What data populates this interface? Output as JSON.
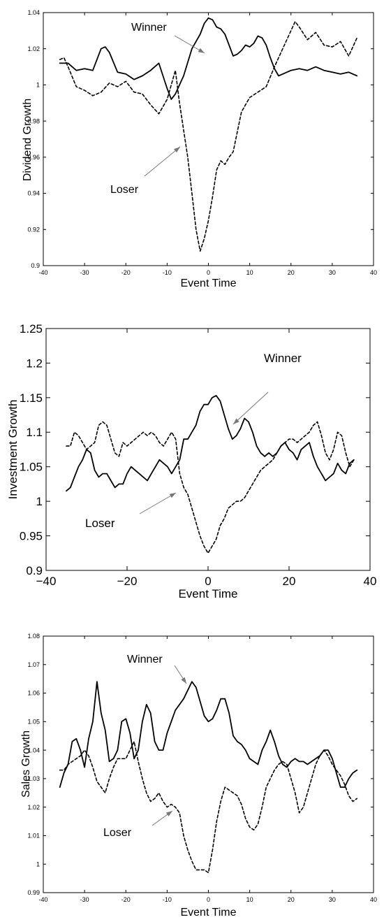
{
  "chart_data": [
    {
      "type": "line",
      "xlabel": "Event Time",
      "ylabel": "Dividend Growth",
      "xlim": [
        -40,
        40
      ],
      "ylim": [
        0.9,
        1.04
      ],
      "xticks": [
        "-40",
        "-30",
        "-20",
        "-10",
        "0",
        "10",
        "20",
        "30",
        "40"
      ],
      "yticks": [
        "0.9",
        "0.92",
        "0.94",
        "0.96",
        "0.98",
        "1",
        "1.02",
        "1.04"
      ],
      "annotations": [
        {
          "text": "Winner"
        },
        {
          "text": "Loser"
        }
      ],
      "series": [
        {
          "name": "Winner",
          "style": "solid",
          "x": [
            -36,
            -34,
            -32,
            -30,
            -28,
            -26,
            -25,
            -24,
            -22,
            -20,
            -18,
            -16,
            -14,
            -12,
            -10,
            -9,
            -8,
            -6,
            -4,
            -2,
            -1,
            0,
            1,
            2,
            3,
            4,
            5,
            6,
            7,
            8,
            9,
            10,
            11,
            12,
            13,
            14,
            15,
            16,
            17,
            18,
            20,
            22,
            24,
            26,
            28,
            30,
            32,
            34,
            36
          ],
          "y": [
            1.012,
            1.012,
            1.008,
            1.009,
            1.008,
            1.02,
            1.021,
            1.018,
            1.007,
            1.006,
            1.003,
            1.005,
            1.008,
            1.012,
            0.998,
            0.992,
            0.995,
            1.005,
            1.02,
            1.028,
            1.034,
            1.037,
            1.036,
            1.032,
            1.031,
            1.028,
            1.022,
            1.016,
            1.017,
            1.019,
            1.022,
            1.021,
            1.023,
            1.027,
            1.026,
            1.022,
            1.015,
            1.009,
            1.005,
            1.006,
            1.008,
            1.009,
            1.008,
            1.01,
            1.008,
            1.007,
            1.006,
            1.007,
            1.005
          ]
        },
        {
          "name": "Loser",
          "style": "dashed",
          "x": [
            -36,
            -35,
            -34,
            -32,
            -30,
            -28,
            -26,
            -24,
            -22,
            -20,
            -18,
            -16,
            -14,
            -12,
            -10,
            -8,
            -7,
            -6,
            -5,
            -4,
            -3,
            -2,
            -1,
            0,
            1,
            2,
            3,
            4,
            5,
            6,
            8,
            10,
            12,
            14,
            16,
            18,
            20,
            21,
            22,
            24,
            26,
            28,
            30,
            32,
            34,
            36
          ],
          "y": [
            1.014,
            1.015,
            1.01,
            0.999,
            0.997,
            0.994,
            0.996,
            1.001,
            0.999,
            1.002,
            0.996,
            0.995,
            0.989,
            0.984,
            0.992,
            1.008,
            0.99,
            0.975,
            0.96,
            0.94,
            0.92,
            0.908,
            0.915,
            0.925,
            0.938,
            0.953,
            0.958,
            0.956,
            0.96,
            0.963,
            0.985,
            0.993,
            0.996,
            0.999,
            1.01,
            1.02,
            1.03,
            1.035,
            1.032,
            1.025,
            1.029,
            1.022,
            1.021,
            1.024,
            1.016,
            1.026
          ]
        }
      ]
    },
    {
      "type": "line",
      "xlabel": "Event Time",
      "ylabel": "Investment Growth",
      "xlim": [
        -40,
        40
      ],
      "ylim": [
        0.9,
        1.25
      ],
      "xticks": [
        "−40",
        "−20",
        "0",
        "20",
        "40"
      ],
      "yticks": [
        "0.9",
        "0.95",
        "1",
        "1.05",
        "1.1",
        "1.15",
        "1.2",
        "1.25"
      ],
      "annotations": [
        {
          "text": "Winner"
        },
        {
          "text": "Loser"
        }
      ],
      "series": [
        {
          "name": "Winner",
          "style": "solid",
          "x": [
            -35,
            -34,
            -33,
            -32,
            -31,
            -30,
            -29,
            -28,
            -27,
            -26,
            -25,
            -24,
            -23,
            -22,
            -21,
            -20,
            -19,
            -18,
            -17,
            -16,
            -15,
            -14,
            -13,
            -12,
            -11,
            -10,
            -9,
            -8,
            -7,
            -6,
            -5,
            -4,
            -3,
            -2,
            -1,
            0,
            1,
            2,
            3,
            4,
            5,
            6,
            7,
            8,
            9,
            10,
            11,
            12,
            13,
            14,
            15,
            16,
            17,
            18,
            19,
            20,
            21,
            22,
            23,
            24,
            25,
            26,
            27,
            28,
            29,
            30,
            31,
            32,
            33,
            34,
            35,
            36
          ],
          "y": [
            1.015,
            1.02,
            1.035,
            1.05,
            1.06,
            1.075,
            1.07,
            1.045,
            1.035,
            1.04,
            1.04,
            1.03,
            1.02,
            1.025,
            1.025,
            1.04,
            1.05,
            1.045,
            1.04,
            1.035,
            1.03,
            1.04,
            1.05,
            1.06,
            1.055,
            1.05,
            1.04,
            1.05,
            1.06,
            1.09,
            1.09,
            1.1,
            1.11,
            1.13,
            1.14,
            1.14,
            1.15,
            1.153,
            1.145,
            1.125,
            1.105,
            1.09,
            1.095,
            1.105,
            1.12,
            1.115,
            1.1,
            1.08,
            1.07,
            1.065,
            1.07,
            1.065,
            1.07,
            1.08,
            1.085,
            1.075,
            1.07,
            1.06,
            1.075,
            1.08,
            1.085,
            1.065,
            1.05,
            1.04,
            1.03,
            1.035,
            1.04,
            1.055,
            1.045,
            1.04,
            1.055,
            1.06
          ]
        },
        {
          "name": "Loser",
          "style": "dashed",
          "x": [
            -35,
            -34,
            -33,
            -32,
            -31,
            -30,
            -29,
            -28,
            -27,
            -26,
            -25,
            -24,
            -23,
            -22,
            -21,
            -20,
            -19,
            -18,
            -17,
            -16,
            -15,
            -14,
            -13,
            -12,
            -11,
            -10,
            -9,
            -8,
            -7,
            -6,
            -5,
            -4,
            -3,
            -2,
            -1,
            0,
            1,
            2,
            3,
            4,
            5,
            6,
            7,
            8,
            9,
            10,
            11,
            12,
            13,
            14,
            15,
            16,
            17,
            18,
            19,
            20,
            21,
            22,
            23,
            24,
            25,
            26,
            27,
            28,
            29,
            30,
            31,
            32,
            33,
            34,
            35,
            36
          ],
          "y": [
            1.08,
            1.08,
            1.1,
            1.095,
            1.085,
            1.075,
            1.08,
            1.085,
            1.11,
            1.115,
            1.11,
            1.09,
            1.07,
            1.065,
            1.085,
            1.08,
            1.085,
            1.09,
            1.095,
            1.1,
            1.095,
            1.1,
            1.095,
            1.085,
            1.08,
            1.09,
            1.1,
            1.09,
            1.04,
            1.02,
            1.01,
            0.99,
            0.97,
            0.95,
            0.935,
            0.925,
            0.935,
            0.945,
            0.965,
            0.975,
            0.99,
            0.995,
            1.0,
            1.0,
            1.005,
            1.015,
            1.025,
            1.035,
            1.045,
            1.05,
            1.055,
            1.06,
            1.07,
            1.08,
            1.085,
            1.09,
            1.09,
            1.085,
            1.09,
            1.095,
            1.1,
            1.11,
            1.115,
            1.095,
            1.07,
            1.06,
            1.075,
            1.1,
            1.095,
            1.07,
            1.05,
            1.06
          ]
        }
      ]
    },
    {
      "type": "line",
      "xlabel": "Event Time",
      "ylabel": "Sales Growth",
      "xlim": [
        -40,
        40
      ],
      "ylim": [
        0.99,
        1.08
      ],
      "xticks": [
        "-40",
        "-30",
        "-20",
        "-10",
        "0",
        "10",
        "20",
        "30",
        "40"
      ],
      "yticks": [
        "0.99",
        "1",
        "1.01",
        "1.02",
        "1.03",
        "1.04",
        "1.05",
        "1.06",
        "1.07",
        "1.08"
      ],
      "annotations": [
        {
          "text": "Winner"
        },
        {
          "text": "Loser"
        }
      ],
      "series": [
        {
          "name": "Winner",
          "style": "solid",
          "x": [
            -36,
            -35,
            -34,
            -33,
            -32,
            -31,
            -30,
            -29,
            -28,
            -27,
            -26,
            -25,
            -24,
            -23,
            -22,
            -21,
            -20,
            -19,
            -18,
            -17,
            -16,
            -15,
            -14,
            -13,
            -12,
            -11,
            -10,
            -9,
            -8,
            -7,
            -6,
            -5,
            -4,
            -3,
            -2,
            -1,
            0,
            1,
            2,
            3,
            4,
            5,
            6,
            7,
            8,
            9,
            10,
            11,
            12,
            13,
            14,
            15,
            16,
            17,
            18,
            19,
            20,
            21,
            22,
            23,
            24,
            25,
            26,
            27,
            28,
            29,
            30,
            31,
            32,
            33,
            34,
            35,
            36
          ],
          "y": [
            1.027,
            1.032,
            1.035,
            1.043,
            1.044,
            1.04,
            1.034,
            1.044,
            1.05,
            1.064,
            1.053,
            1.047,
            1.036,
            1.037,
            1.04,
            1.05,
            1.051,
            1.046,
            1.037,
            1.04,
            1.05,
            1.056,
            1.053,
            1.043,
            1.04,
            1.04,
            1.046,
            1.05,
            1.054,
            1.056,
            1.058,
            1.061,
            1.064,
            1.062,
            1.057,
            1.052,
            1.05,
            1.051,
            1.054,
            1.058,
            1.058,
            1.053,
            1.045,
            1.043,
            1.042,
            1.04,
            1.037,
            1.036,
            1.035,
            1.04,
            1.043,
            1.047,
            1.043,
            1.038,
            1.035,
            1.034,
            1.036,
            1.037,
            1.036,
            1.036,
            1.035,
            1.036,
            1.037,
            1.038,
            1.04,
            1.04,
            1.037,
            1.032,
            1.027,
            1.027,
            1.03,
            1.032,
            1.033
          ]
        },
        {
          "name": "Loser",
          "style": "dashed",
          "x": [
            -36,
            -35,
            -34,
            -33,
            -32,
            -31,
            -30,
            -29,
            -28,
            -27,
            -26,
            -25,
            -24,
            -23,
            -22,
            -21,
            -20,
            -19,
            -18,
            -17,
            -16,
            -15,
            -14,
            -13,
            -12,
            -11,
            -10,
            -9,
            -8,
            -7,
            -6,
            -5,
            -4,
            -3,
            -2,
            -1,
            0,
            1,
            2,
            3,
            4,
            5,
            6,
            7,
            8,
            9,
            10,
            11,
            12,
            13,
            14,
            15,
            16,
            17,
            18,
            19,
            20,
            21,
            22,
            23,
            24,
            25,
            26,
            27,
            28,
            29,
            30,
            31,
            32,
            33,
            34,
            35,
            36
          ],
          "y": [
            1.033,
            1.033,
            1.035,
            1.036,
            1.037,
            1.038,
            1.04,
            1.038,
            1.034,
            1.029,
            1.027,
            1.025,
            1.03,
            1.034,
            1.037,
            1.037,
            1.037,
            1.04,
            1.043,
            1.036,
            1.03,
            1.025,
            1.022,
            1.023,
            1.025,
            1.022,
            1.02,
            1.021,
            1.02,
            1.018,
            1.01,
            1.005,
            1.001,
            0.998,
            0.998,
            0.998,
            0.997,
            1.005,
            1.015,
            1.022,
            1.027,
            1.026,
            1.025,
            1.024,
            1.021,
            1.016,
            1.013,
            1.012,
            1.014,
            1.02,
            1.027,
            1.03,
            1.033,
            1.035,
            1.036,
            1.035,
            1.03,
            1.025,
            1.018,
            1.02,
            1.025,
            1.03,
            1.035,
            1.038,
            1.04,
            1.038,
            1.035,
            1.033,
            1.031,
            1.028,
            1.024,
            1.022,
            1.023
          ]
        }
      ]
    }
  ]
}
